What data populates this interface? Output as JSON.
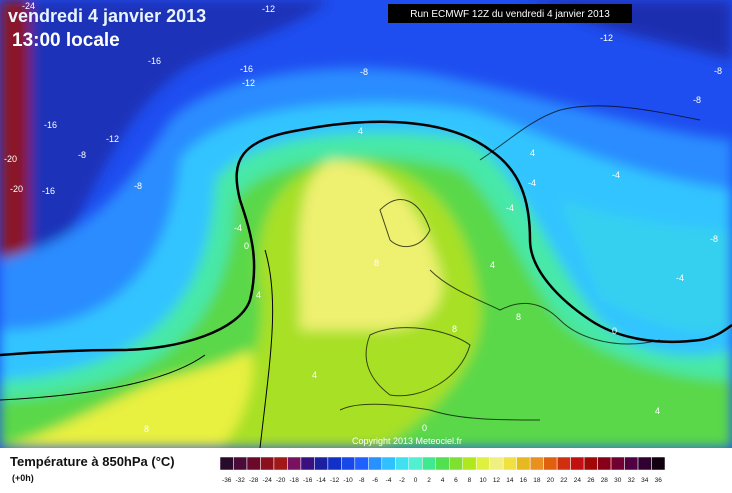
{
  "header": {
    "date": "vendredi 4 janvier 2013",
    "time": "13:00 locale",
    "run": "Run ECMWF 12Z du vendredi 4 janvier 2013"
  },
  "copyright": "Copyright 2013 Meteociel.fr",
  "legend": {
    "title": "Température à 850hPa (°C)",
    "subtitle": "(+0h)",
    "labels": [
      "-36",
      "-32",
      "-28",
      "-24",
      "-20",
      "-18",
      "-16",
      "-14",
      "-12",
      "-10",
      "-8",
      "-6",
      "-4",
      "-2",
      "0",
      "2",
      "4",
      "6",
      "8",
      "10",
      "12",
      "14",
      "16",
      "18",
      "20",
      "22",
      "24",
      "26",
      "28",
      "30",
      "32",
      "34",
      "36"
    ],
    "colors": [
      "#2a0a2a",
      "#4a0a3a",
      "#6a0a2a",
      "#8a1020",
      "#a01818",
      "#7a1060",
      "#3a1080",
      "#1a20a0",
      "#1030c8",
      "#1848e8",
      "#2060ff",
      "#2890ff",
      "#30c0ff",
      "#40e0f0",
      "#50f0d0",
      "#40e890",
      "#50e050",
      "#80e030",
      "#b0e820",
      "#e0f040",
      "#f0f080",
      "#f0e040",
      "#e8b820",
      "#e89020",
      "#e06010",
      "#d03010",
      "#c01010",
      "#a00808",
      "#880018",
      "#700030",
      "#500040",
      "#300030",
      "#100010"
    ]
  },
  "contour_labels": [
    "-24",
    "-12",
    "-12",
    "-16",
    "-16",
    "-12",
    "-8",
    "-8",
    "-8",
    "-16",
    "-12",
    "-8",
    "-20",
    "-20",
    "-16",
    "-8",
    "-4",
    "4",
    "4",
    "-4",
    "-4",
    "-4",
    "0",
    "4",
    "8",
    "4",
    "-4",
    "-8",
    "0",
    "8",
    "8",
    "4",
    "8",
    "0",
    "4"
  ]
}
